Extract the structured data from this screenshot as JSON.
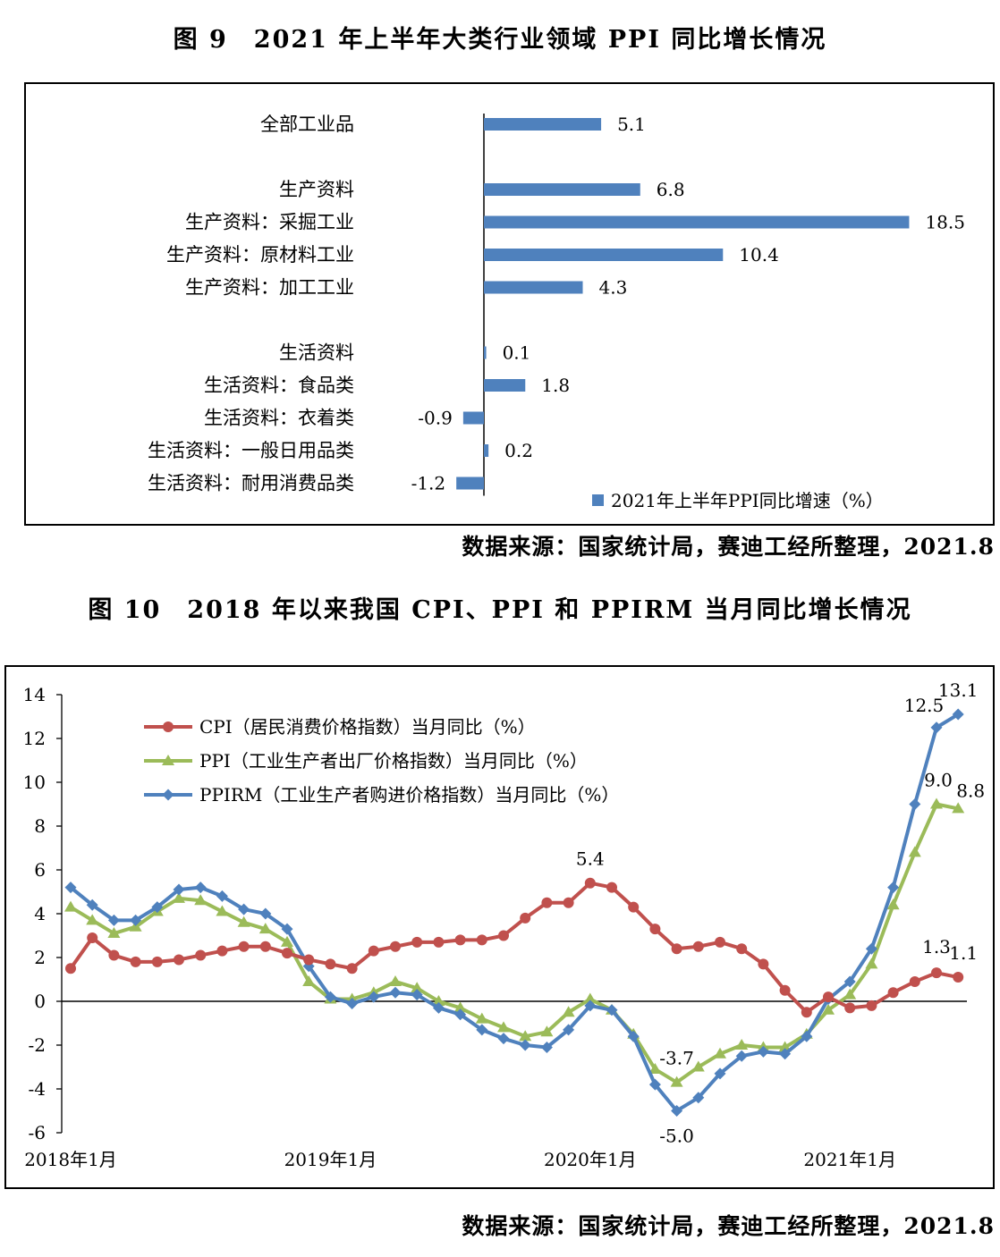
{
  "fig9": {
    "title": "图 9　2021 年上半年大类行业领域 PPI 同比增长情况",
    "source": "数据来源：国家统计局，赛迪工经所整理，2021.8"
  },
  "fig10": {
    "title": "图 10　2018 年以来我国 CPI、PPI 和 PPIRM 当月同比增长情况",
    "source": "数据来源：国家统计局，赛迪工经所整理，2021.8"
  },
  "chart_data": [
    {
      "type": "bar",
      "orientation": "horizontal",
      "title": "2021年上半年大类行业领域PPI同比增长情况",
      "categories": [
        "全部工业品",
        "",
        "生产资料",
        "生产资料：采掘工业",
        "生产资料：原材料工业",
        "生产资料：加工工业",
        "",
        "生活资料",
        "生活资料：食品类",
        "生活资料：衣着类",
        "生活资料：一般日用品类",
        "生活资料：耐用消费品类"
      ],
      "series": [
        {
          "name": "2021年上半年PPI同比增速（%）",
          "values": [
            5.1,
            null,
            6.8,
            18.5,
            10.4,
            4.3,
            null,
            0.1,
            1.8,
            -0.9,
            0.2,
            -1.2
          ]
        }
      ],
      "data_labels": [
        "5.1",
        "",
        "6.8",
        "18.5",
        "10.4",
        "4.3",
        "",
        "0.1",
        "1.8",
        "-0.9",
        "0.2",
        "-1.2"
      ],
      "xlim": [
        -1.2,
        18.5
      ],
      "colors": {
        "bar": "#4F81BD"
      },
      "legend_position": "bottom-right",
      "grid": false
    },
    {
      "type": "line",
      "title": "2018年以来我国CPI、PPI和PPIRM当月同比增长情况",
      "x_start": "2018年1月",
      "x_tick_labels": [
        "2018年1月",
        "2019年1月",
        "2020年1月",
        "2021年1月"
      ],
      "ylim": [
        -6,
        14
      ],
      "y_ticks": [
        -6,
        -4,
        -2,
        0,
        2,
        4,
        6,
        8,
        10,
        12,
        14
      ],
      "grid": false,
      "legend_position": "top-left",
      "series": [
        {
          "name": "CPI（居民消费价格指数）当月同比（%）",
          "color": "#C0504D",
          "marker": "circle",
          "values": [
            1.5,
            2.9,
            2.1,
            1.8,
            1.8,
            1.9,
            2.1,
            2.3,
            2.5,
            2.5,
            2.2,
            1.9,
            1.7,
            1.5,
            2.3,
            2.5,
            2.7,
            2.7,
            2.8,
            2.8,
            3.0,
            3.8,
            4.5,
            4.5,
            5.4,
            5.2,
            4.3,
            3.3,
            2.4,
            2.5,
            2.7,
            2.4,
            1.7,
            0.5,
            -0.5,
            0.2,
            -0.3,
            -0.2,
            0.4,
            0.9,
            1.3,
            1.1
          ]
        },
        {
          "name": "PPI（工业生产者出厂价格指数）当月同比（%）",
          "color": "#9BBB59",
          "marker": "triangle",
          "values": [
            4.3,
            3.7,
            3.1,
            3.4,
            4.1,
            4.7,
            4.6,
            4.1,
            3.6,
            3.3,
            2.7,
            0.9,
            0.1,
            0.1,
            0.4,
            0.9,
            0.6,
            0.0,
            -0.3,
            -0.8,
            -1.2,
            -1.6,
            -1.4,
            -0.5,
            0.1,
            -0.4,
            -1.5,
            -3.1,
            -3.7,
            -3.0,
            -2.4,
            -2.0,
            -2.1,
            -2.1,
            -1.5,
            -0.4,
            0.3,
            1.7,
            4.4,
            6.8,
            9.0,
            8.8
          ]
        },
        {
          "name": "PPIRM（工业生产者购进价格指数）当月同比（%）",
          "color": "#4F81BD",
          "marker": "diamond",
          "values": [
            5.2,
            4.4,
            3.7,
            3.7,
            4.3,
            5.1,
            5.2,
            4.8,
            4.2,
            4.0,
            3.3,
            1.6,
            0.2,
            -0.1,
            0.2,
            0.4,
            0.3,
            -0.3,
            -0.6,
            -1.3,
            -1.7,
            -2.0,
            -2.1,
            -1.3,
            -0.2,
            -0.4,
            -1.6,
            -3.8,
            -5.0,
            -4.4,
            -3.3,
            -2.5,
            -2.3,
            -2.4,
            -1.6,
            0.1,
            0.9,
            2.4,
            5.2,
            9.0,
            12.5,
            13.1
          ]
        }
      ],
      "annotations": [
        {
          "text": "5.4",
          "series": 0,
          "index": 24
        },
        {
          "text": "1.3",
          "series": 0,
          "index": 40
        },
        {
          "text": "1.1",
          "series": 0,
          "index": 41
        },
        {
          "text": "-3.7",
          "series": 1,
          "index": 28
        },
        {
          "text": "9.0",
          "series": 1,
          "index": 40
        },
        {
          "text": "8.8",
          "series": 1,
          "index": 41
        },
        {
          "text": "-5.0",
          "series": 2,
          "index": 28
        },
        {
          "text": "12.5",
          "series": 2,
          "index": 40
        },
        {
          "text": "13.1",
          "series": 2,
          "index": 41
        }
      ]
    }
  ]
}
